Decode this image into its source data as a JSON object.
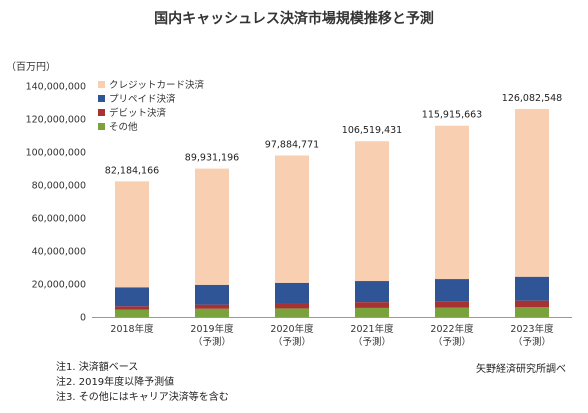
{
  "title": "国内キャッシュレス決済市場規模推移と予測",
  "unit_label": "（百万円）",
  "notes": [
    "注1. 決済額ベース",
    "注2. 2019年度以降予測値",
    "注3. その他にはキャリア決済等を含む"
  ],
  "source": "矢野経済研究所調べ",
  "chart_data": {
    "type": "bar",
    "stacked": true,
    "categories": [
      [
        "2018年度"
      ],
      [
        "2019年度",
        "（予測）"
      ],
      [
        "2020年度",
        "（予測）"
      ],
      [
        "2021年度",
        "（予測）"
      ],
      [
        "2022年度",
        "（予測）"
      ],
      [
        "2023年度",
        "（予測）"
      ]
    ],
    "series": [
      {
        "name": "その他",
        "color": "#7aa33d",
        "values": [
          4500000,
          5000000,
          5200000,
          5500000,
          5700000,
          5900000
        ]
      },
      {
        "name": "デビット決済",
        "color": "#a83232",
        "values": [
          2000000,
          2500000,
          3000000,
          3500000,
          3800000,
          4000000
        ]
      },
      {
        "name": "プリペイド決済",
        "color": "#2f5597",
        "values": [
          11500000,
          12000000,
          12500000,
          12800000,
          13500000,
          14500000
        ]
      },
      {
        "name": "クレジットカード決済",
        "color": "#f8cfb0",
        "values": [
          64184166,
          70431196,
          77184771,
          84719431,
          92915663,
          101682548
        ]
      }
    ],
    "totals": [
      "82,184,166",
      "89,931,196",
      "97,884,771",
      "106,519,431",
      "115,915,663",
      "126,082,548"
    ],
    "total_values": [
      82184166,
      89931196,
      97884771,
      106519431,
      115915663,
      126082548
    ],
    "ylim": [
      0,
      140000000
    ],
    "yticks": [
      0,
      20000000,
      40000000,
      60000000,
      80000000,
      100000000,
      120000000,
      140000000
    ],
    "ytick_labels": [
      "0",
      "20,000,000",
      "40,000,000",
      "60,000,000",
      "80,000,000",
      "100,000,000",
      "120,000,000",
      "140,000,000"
    ],
    "legend": [
      "クレジットカード決済",
      "プリペイド決済",
      "デビット決済",
      "その他"
    ],
    "legend_position": "top-left",
    "grid": false
  }
}
